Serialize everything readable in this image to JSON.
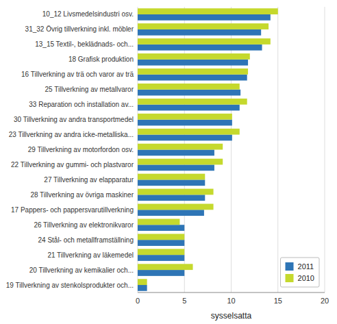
{
  "chart_data": {
    "type": "bar",
    "orientation": "horizontal",
    "categories": [
      "10_12 Livsmedelsindustri osv.",
      "31_32 Övrig tillverkning inkl. möbler",
      "13_15 Textil-, beklädnads- och...",
      "18 Grafisk produktion",
      "16 Tillverkning av trä och varor av trä",
      "25 Tillverkning av metallvaror",
      "33 Reparation och installation av...",
      "30 Tillverkning av andra transportmedel",
      "23 Tillverkning av andra icke-metalliska...",
      "29 Tillverkning av motorfordon osv.",
      "22 Tillverkning av gummi- och plastvaror",
      "27 Tillverkning av elapparatur",
      "28 Tillverkning av övriga maskiner",
      "17 Pappers- och pappersvarutillverkning",
      "26 Tillverkning av elektronikvaror",
      "24 Stål- och metallframställning",
      "21 Tillverkning av läkemedel",
      "20 Tillverkning av kemikalier och...",
      "19 Tillverkning av stenkolsprodukter och..."
    ],
    "series": [
      {
        "name": "2011",
        "color": "#2e75b6",
        "values": [
          14.2,
          13.2,
          13.3,
          11.8,
          11.7,
          11.0,
          10.9,
          10.1,
          10.1,
          8.2,
          8.2,
          7.2,
          7.2,
          7.1,
          5.0,
          5.0,
          5.0,
          5.0,
          1.0
        ]
      },
      {
        "name": "2010",
        "color": "#c5d92d",
        "values": [
          15.0,
          14.0,
          14.2,
          12.0,
          11.8,
          10.9,
          11.7,
          10.1,
          10.9,
          9.1,
          9.1,
          7.2,
          8.1,
          8.1,
          4.5,
          5.0,
          5.0,
          5.9,
          1.0
        ]
      }
    ],
    "xlabel": "sysselsatta",
    "xlim": [
      0,
      20
    ],
    "xticks": [
      0,
      5,
      10,
      15,
      20
    ],
    "grid": true,
    "legend": "lower right"
  }
}
